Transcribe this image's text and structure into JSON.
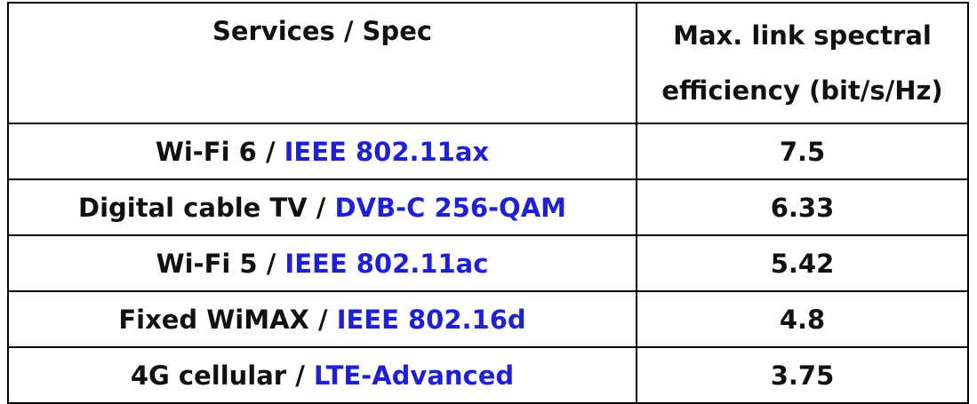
{
  "table": {
    "header": {
      "col1": "Services / Spec",
      "col2_line1": "Max. link spectral",
      "col2_line2": "efficiency (bit/s/Hz)"
    },
    "rows": [
      {
        "service": "Wi-Fi 6",
        "separator": " / ",
        "spec": "IEEE 802.11ax",
        "value": "7.5"
      },
      {
        "service": "Digital cable TV",
        "separator": " / ",
        "spec": "DVB-C 256-QAM",
        "value": "6.33"
      },
      {
        "service": "Wi-Fi 5",
        "separator": " / ",
        "spec": "IEEE 802.11ac",
        "value": "5.42"
      },
      {
        "service": "Fixed WiMAX",
        "separator": " / ",
        "spec": "IEEE 802.16d",
        "value": "4.8"
      },
      {
        "service": "4G cellular",
        "separator": " / ",
        "spec": "LTE-Advanced",
        "value": "3.75"
      }
    ],
    "colors": {
      "spec_text": "#1f1fd6",
      "text": "#111111",
      "border": "#000000"
    }
  }
}
